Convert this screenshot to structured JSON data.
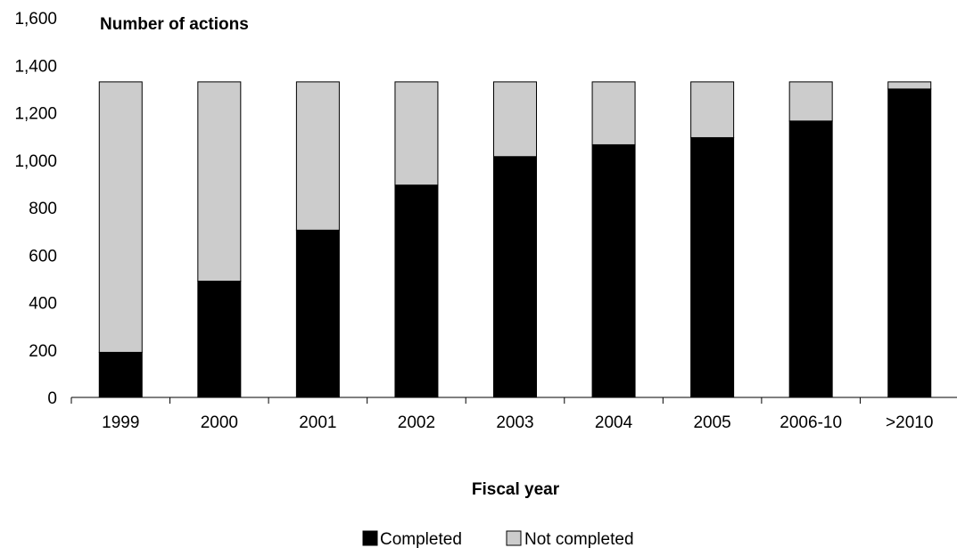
{
  "chart_data": {
    "type": "bar",
    "stacked": true,
    "ylabel": "Number of actions",
    "xlabel": "Fiscal year",
    "categories": [
      "1999",
      "2000",
      "2001",
      "2002",
      "2003",
      "2004",
      "2005",
      "2006-10",
      ">2010"
    ],
    "ylim": [
      0,
      1600
    ],
    "yticks": [
      0,
      200,
      400,
      600,
      800,
      1000,
      1200,
      1400,
      1600
    ],
    "ytick_labels": [
      "0",
      "200",
      "400",
      "600",
      "800",
      "1,000",
      "1,200",
      "1,400",
      "1,600"
    ],
    "series": [
      {
        "name": "Completed",
        "color": "#000000",
        "values": [
          190,
          490,
          705,
          895,
          1015,
          1065,
          1095,
          1165,
          1300
        ]
      },
      {
        "name": "Not completed",
        "color": "#cccccc",
        "values": [
          1140,
          840,
          625,
          435,
          315,
          265,
          235,
          165,
          30
        ]
      }
    ],
    "grid": false,
    "legend": "bottom-center"
  }
}
